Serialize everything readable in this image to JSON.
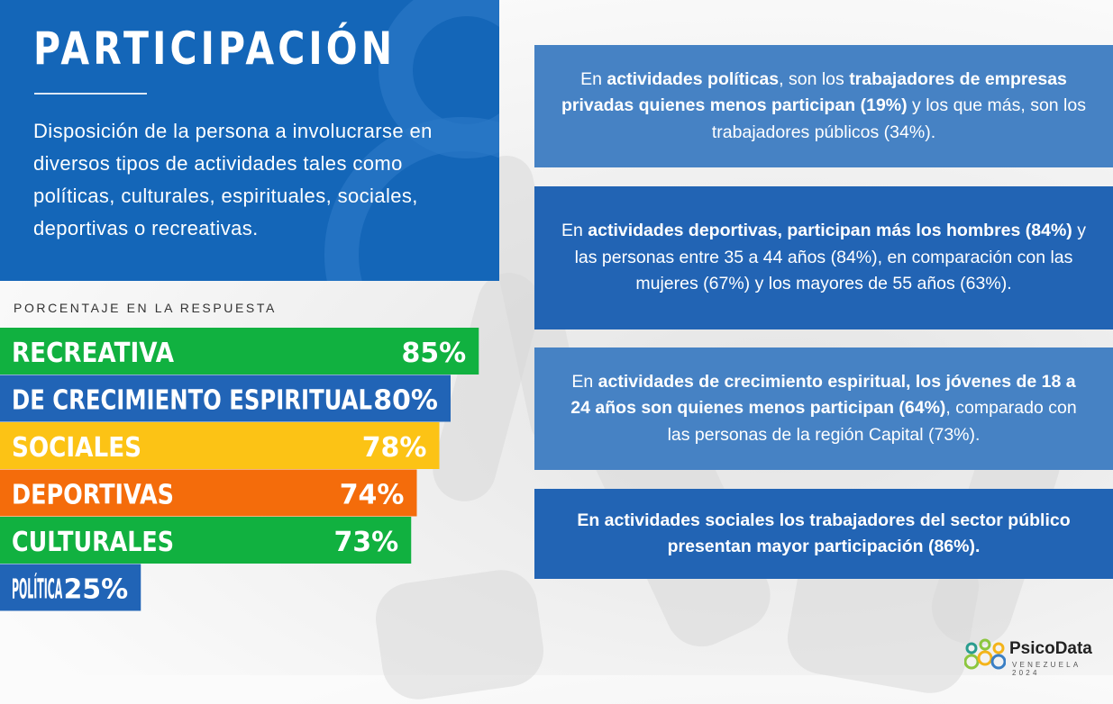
{
  "header": {
    "title": "PARTICIPACIÓN",
    "description": "Disposición de la persona a involucrarse en diversos tipos de actividades tales como políticas, culturales, espirituales, sociales, deportivas o recreativas."
  },
  "chart_data": {
    "type": "bar",
    "orientation": "horizontal",
    "title": "PORCENTAJE EN LA RESPUESTA",
    "categories": [
      "RECREATIVA",
      "DE CRECIMIENTO ESPIRITUAL",
      "SOCIALES",
      "DEPORTIVAS",
      "CULTURALES",
      "POLÍTICA"
    ],
    "values": [
      85,
      80,
      78,
      74,
      73,
      25
    ],
    "value_labels": [
      "85%",
      "80%",
      "78%",
      "74%",
      "73%",
      "25%"
    ],
    "colors": [
      "#11b140",
      "#2164b6",
      "#fcc315",
      "#f46c0b",
      "#11b140",
      "#2164b6"
    ],
    "unit": "%",
    "xlim": [
      0,
      100
    ],
    "grid": false,
    "legend": "none"
  },
  "cards": [
    {
      "parts": [
        {
          "text": "En ",
          "bold": false
        },
        {
          "text": "actividades políticas",
          "bold": true
        },
        {
          "text": ", son los ",
          "bold": false
        },
        {
          "text": "trabajadores de empresas privadas  quienes menos participan (19%)",
          "bold": true
        },
        {
          "text": " y los que más, son los trabajadores públicos (34%).",
          "bold": false
        }
      ]
    },
    {
      "parts": [
        {
          "text": "En ",
          "bold": false
        },
        {
          "text": "actividades deportivas, participan más los hombres (84%)",
          "bold": true
        },
        {
          "text": " y las personas entre 35 a 44 años (84%), en comparación con las mujeres (67%) y los mayores de 55 años (63%).",
          "bold": false
        }
      ]
    },
    {
      "parts": [
        {
          "text": "En ",
          "bold": false
        },
        {
          "text": "actividades de crecimiento espiritual, los jóvenes de 18 a 24 años son quienes menos participan (64%)",
          "bold": true
        },
        {
          "text": ", comparado con las personas de la región Capital (73%).",
          "bold": false
        }
      ]
    },
    {
      "parts": [
        {
          "text": "En actividades sociales los trabajadores del sector público presentan mayor participación (86%).",
          "bold": true
        }
      ]
    }
  ],
  "logo": {
    "name": "PsicoData",
    "subtitle": "VENEZUELA 2024",
    "colors": [
      "#2a9d8f",
      "#8cc63f",
      "#f4b41a",
      "#3a7fc4"
    ]
  }
}
